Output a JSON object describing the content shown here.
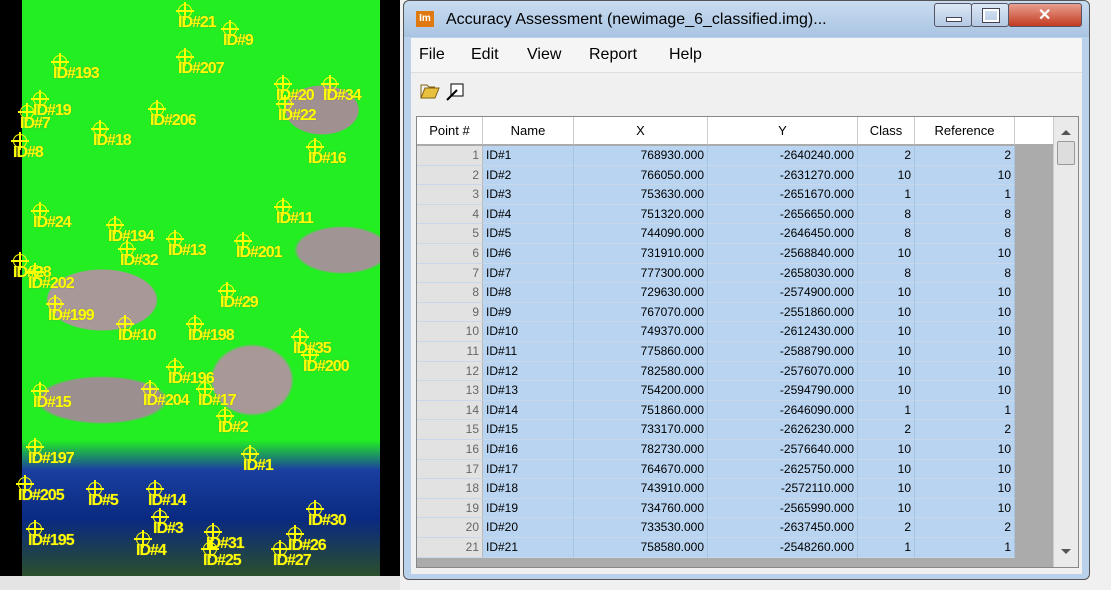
{
  "image": {
    "labels": [
      "ID#21",
      "ID#9",
      "ID#193",
      "ID#207",
      "ID#20",
      "ID#34",
      "ID#19",
      "ID#7",
      "ID#206",
      "ID#22",
      "ID#18",
      "ID#8",
      "ID#16",
      "ID#24",
      "ID#194",
      "ID#11",
      "ID#32",
      "ID#13",
      "ID#201",
      "ID#28",
      "ID#202",
      "ID#29",
      "ID#199",
      "ID#10",
      "ID#198",
      "ID#35",
      "ID#200",
      "ID#196",
      "ID#15",
      "ID#204",
      "ID#17",
      "ID#2",
      "ID#197",
      "ID#1",
      "ID#205",
      "ID#5",
      "ID#14",
      "ID#30",
      "ID#195",
      "ID#3",
      "ID#4",
      "ID#31",
      "ID#25",
      "ID#26",
      "ID#27"
    ]
  },
  "window": {
    "icon": "Im",
    "title": "Accuracy Assessment (newimage_6_classified.img)...",
    "menu": [
      "File",
      "Edit",
      "View",
      "Report",
      "Help"
    ]
  },
  "table": {
    "headers": [
      "Point #",
      "Name",
      "X",
      "Y",
      "Class",
      "Reference"
    ],
    "rows": [
      [
        1,
        "ID#1",
        "768930.000",
        "-2640240.000",
        2,
        2
      ],
      [
        2,
        "ID#2",
        "766050.000",
        "-2631270.000",
        10,
        10
      ],
      [
        3,
        "ID#3",
        "753630.000",
        "-2651670.000",
        1,
        1
      ],
      [
        4,
        "ID#4",
        "751320.000",
        "-2656650.000",
        8,
        8
      ],
      [
        5,
        "ID#5",
        "744090.000",
        "-2646450.000",
        8,
        8
      ],
      [
        6,
        "ID#6",
        "731910.000",
        "-2568840.000",
        10,
        10
      ],
      [
        7,
        "ID#7",
        "777300.000",
        "-2658030.000",
        8,
        8
      ],
      [
        8,
        "ID#8",
        "729630.000",
        "-2574900.000",
        10,
        10
      ],
      [
        9,
        "ID#9",
        "767070.000",
        "-2551860.000",
        10,
        10
      ],
      [
        10,
        "ID#10",
        "749370.000",
        "-2612430.000",
        10,
        10
      ],
      [
        11,
        "ID#11",
        "775860.000",
        "-2588790.000",
        10,
        10
      ],
      [
        12,
        "ID#12",
        "782580.000",
        "-2576070.000",
        10,
        10
      ],
      [
        13,
        "ID#13",
        "754200.000",
        "-2594790.000",
        10,
        10
      ],
      [
        14,
        "ID#14",
        "751860.000",
        "-2646090.000",
        1,
        1
      ],
      [
        15,
        "ID#15",
        "733170.000",
        "-2626230.000",
        2,
        2
      ],
      [
        16,
        "ID#16",
        "782730.000",
        "-2576640.000",
        10,
        10
      ],
      [
        17,
        "ID#17",
        "764670.000",
        "-2625750.000",
        10,
        10
      ],
      [
        18,
        "ID#18",
        "743910.000",
        "-2572110.000",
        10,
        10
      ],
      [
        19,
        "ID#19",
        "734760.000",
        "-2565990.000",
        10,
        10
      ],
      [
        20,
        "ID#20",
        "733530.000",
        "-2637450.000",
        2,
        2
      ],
      [
        21,
        "ID#21",
        "758580.000",
        "-2548260.000",
        1,
        1
      ]
    ]
  }
}
